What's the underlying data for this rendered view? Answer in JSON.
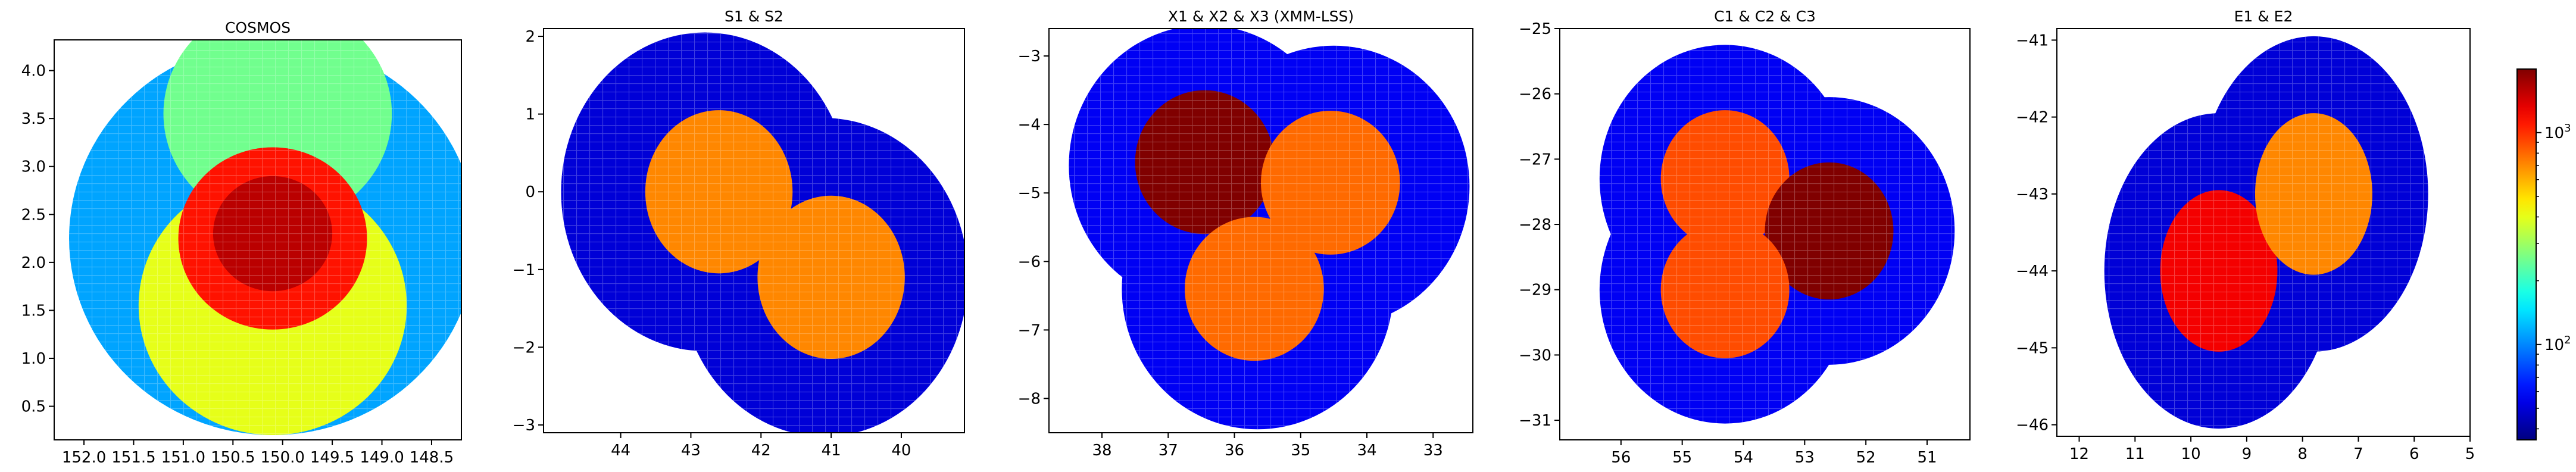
{
  "chart_data": [
    {
      "type": "heatmap",
      "title": "COSMOS",
      "xlabel": "",
      "ylabel": "",
      "xlim": [
        152.3,
        148.2
      ],
      "ylim": [
        0.15,
        4.32
      ],
      "xticks": [
        152.0,
        151.5,
        151.0,
        150.5,
        150.0,
        149.5,
        149.0,
        148.5
      ],
      "xtick_labels": [
        "152.0",
        "151.5",
        "151.0",
        "150.5",
        "150.0",
        "149.5",
        "149.0",
        "148.5"
      ],
      "yticks": [
        0.5,
        1.0,
        1.5,
        2.0,
        2.5,
        3.0,
        3.5,
        4.0
      ],
      "ytick_labels": [
        "0.5",
        "1.0",
        "1.5",
        "2.0",
        "2.5",
        "3.0",
        "3.5",
        "4.0"
      ],
      "regions": [
        {
          "shape": "circle",
          "center": [
            150.1,
            2.25
          ],
          "radius": 2.05,
          "level": 2.05
        },
        {
          "shape": "circle",
          "center": [
            150.05,
            3.55
          ],
          "radius": 1.15,
          "level": 2.4
        },
        {
          "shape": "circle",
          "center": [
            150.1,
            1.55
          ],
          "radius": 1.35,
          "level": 2.6
        },
        {
          "shape": "circle",
          "center": [
            150.1,
            2.25
          ],
          "radius": 0.95,
          "level": 3.05
        },
        {
          "shape": "circle",
          "center": [
            150.1,
            2.3
          ],
          "radius": 0.6,
          "level": 3.2
        }
      ]
    },
    {
      "type": "heatmap",
      "title": "S1 & S2",
      "xlabel": "",
      "ylabel": "",
      "xlim": [
        45.1,
        39.1
      ],
      "ylim": [
        -3.1,
        2.1
      ],
      "xticks": [
        44,
        43,
        42,
        41,
        40
      ],
      "xtick_labels": [
        "44",
        "43",
        "42",
        "41",
        "40"
      ],
      "yticks": [
        -3,
        -2,
        -1,
        0,
        1,
        2
      ],
      "ytick_labels": [
        "−3",
        "−2",
        "−1",
        "0",
        "1",
        "2"
      ],
      "regions": [
        {
          "shape": "circle",
          "center": [
            42.8,
            0.0
          ],
          "radius": 2.05,
          "level": 1.7
        },
        {
          "shape": "circle",
          "center": [
            41.1,
            -1.1
          ],
          "radius": 2.05,
          "level": 1.7
        },
        {
          "shape": "circle",
          "center": [
            42.6,
            0.0
          ],
          "radius": 1.05,
          "level": 2.85
        },
        {
          "shape": "circle",
          "center": [
            41.0,
            -1.1
          ],
          "radius": 1.05,
          "level": 2.85
        }
      ]
    },
    {
      "type": "heatmap",
      "title": "X1 & X2 & X3 (XMM-LSS)",
      "xlabel": "",
      "ylabel": "",
      "xlim": [
        38.8,
        32.4
      ],
      "ylim": [
        -8.5,
        -2.6
      ],
      "xticks": [
        38,
        37,
        36,
        35,
        34,
        33
      ],
      "xtick_labels": [
        "38",
        "37",
        "36",
        "35",
        "34",
        "33"
      ],
      "yticks": [
        -8,
        -7,
        -6,
        -5,
        -4,
        -3
      ],
      "ytick_labels": [
        "−8",
        "−7",
        "−6",
        "−5",
        "−4",
        "−3"
      ],
      "regions": [
        {
          "shape": "circle",
          "center": [
            36.45,
            -4.6
          ],
          "radius": 2.05,
          "level": 1.75
        },
        {
          "shape": "circle",
          "center": [
            34.5,
            -4.9
          ],
          "radius": 2.05,
          "level": 1.75
        },
        {
          "shape": "circle",
          "center": [
            35.65,
            -6.4
          ],
          "radius": 2.05,
          "level": 1.75
        },
        {
          "shape": "circle",
          "center": [
            36.45,
            -4.55
          ],
          "radius": 1.05,
          "level": 3.5
        },
        {
          "shape": "circle",
          "center": [
            34.55,
            -4.85
          ],
          "radius": 1.05,
          "level": 2.9
        },
        {
          "shape": "circle",
          "center": [
            35.7,
            -6.4
          ],
          "radius": 1.05,
          "level": 2.9
        }
      ]
    },
    {
      "type": "heatmap",
      "title": "C1 & C2 & C3",
      "xlabel": "",
      "ylabel": "",
      "xlim": [
        57.0,
        50.3
      ],
      "ylim": [
        -31.3,
        -25.0
      ],
      "xticks": [
        56,
        55,
        54,
        53,
        52,
        51
      ],
      "xtick_labels": [
        "56",
        "55",
        "54",
        "53",
        "52",
        "51"
      ],
      "yticks": [
        -31,
        -30,
        -29,
        -28,
        -27,
        -26,
        -25
      ],
      "ytick_labels": [
        "−31",
        "−30",
        "−29",
        "−28",
        "−27",
        "−26",
        "−25"
      ],
      "regions": [
        {
          "shape": "circle",
          "center": [
            54.3,
            -27.3
          ],
          "radius": 2.05,
          "level": 1.75
        },
        {
          "shape": "circle",
          "center": [
            52.6,
            -28.1
          ],
          "radius": 2.05,
          "level": 1.75
        },
        {
          "shape": "circle",
          "center": [
            54.3,
            -29.0
          ],
          "radius": 2.05,
          "level": 1.75
        },
        {
          "shape": "circle",
          "center": [
            54.3,
            -27.3
          ],
          "radius": 1.05,
          "level": 2.95
        },
        {
          "shape": "circle",
          "center": [
            52.6,
            -28.1
          ],
          "radius": 1.05,
          "level": 3.5
        },
        {
          "shape": "circle",
          "center": [
            54.3,
            -29.0
          ],
          "radius": 1.05,
          "level": 2.95
        }
      ]
    },
    {
      "type": "heatmap",
      "title": "E1 & E2",
      "xlabel": "",
      "ylabel": "",
      "xlim": [
        12.4,
        5.0
      ],
      "ylim": [
        -46.15,
        -40.85
      ],
      "xticks": [
        12,
        11,
        10,
        9,
        8,
        7,
        6,
        5
      ],
      "xtick_labels": [
        "12",
        "11",
        "10",
        "9",
        "8",
        "7",
        "6",
        "5"
      ],
      "yticks": [
        -46,
        -45,
        -44,
        -43,
        -42,
        -41
      ],
      "ytick_labels": [
        "−46",
        "−45",
        "−44",
        "−43",
        "−42",
        "−41"
      ],
      "regions": [
        {
          "shape": "circle",
          "center": [
            9.5,
            -44.0
          ],
          "radius": 2.05,
          "level": 1.7
        },
        {
          "shape": "circle",
          "center": [
            7.8,
            -43.0
          ],
          "radius": 2.05,
          "level": 1.7
        },
        {
          "shape": "circle",
          "center": [
            9.5,
            -44.0
          ],
          "radius": 1.05,
          "level": 3.1
        },
        {
          "shape": "circle",
          "center": [
            7.8,
            -43.0
          ],
          "radius": 1.05,
          "level": 2.85
        }
      ]
    }
  ],
  "colorbar": {
    "scale": "log",
    "colormap": "jet",
    "range_log10": [
      1.55,
      3.3
    ],
    "ticks": [
      {
        "value_log10": 2,
        "base": "10",
        "exp": "2"
      },
      {
        "value_log10": 3,
        "base": "10",
        "exp": "3"
      }
    ]
  }
}
